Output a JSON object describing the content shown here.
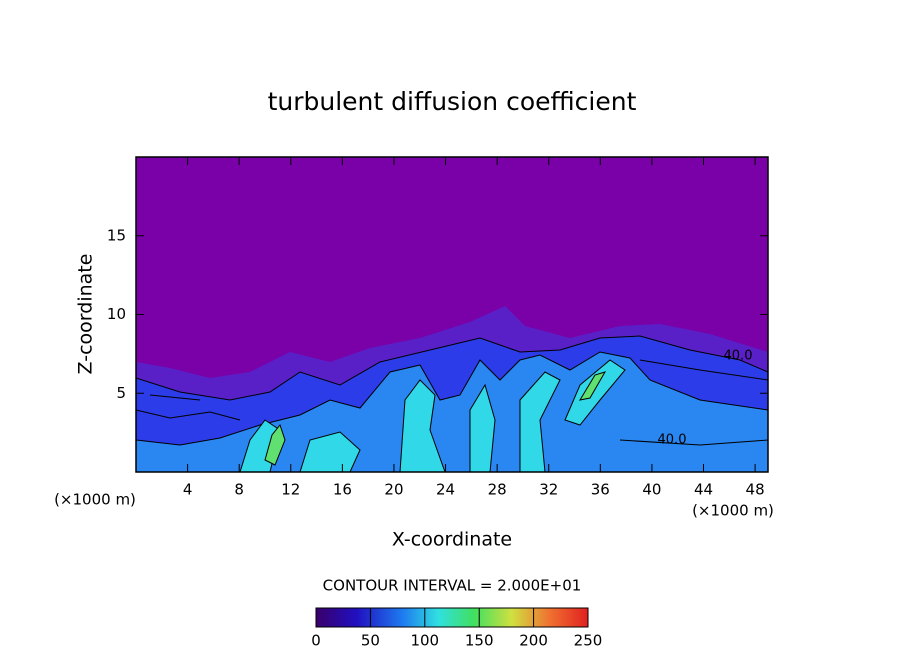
{
  "chart_data": {
    "type": "contour",
    "title": "turbulent diffusion coefficient",
    "xlabel": "X-coordinate",
    "ylabel": "Z-coordinate",
    "x_unit_labels": [
      "(×1000 m)",
      "(×1000 m)"
    ],
    "xlim": [
      0,
      49
    ],
    "ylim": [
      0,
      20
    ],
    "xticks": [
      4,
      8,
      12,
      16,
      20,
      24,
      28,
      32,
      36,
      40,
      44,
      48
    ],
    "yticks": [
      5,
      10,
      15
    ],
    "contour_interval_label": "CONTOUR INTERVAL = 2.000E+01",
    "contour_labels": [
      "40.0",
      "40.0"
    ],
    "clim": [
      0,
      250
    ],
    "cticks": [
      0,
      50,
      100,
      150,
      200,
      250
    ]
  }
}
